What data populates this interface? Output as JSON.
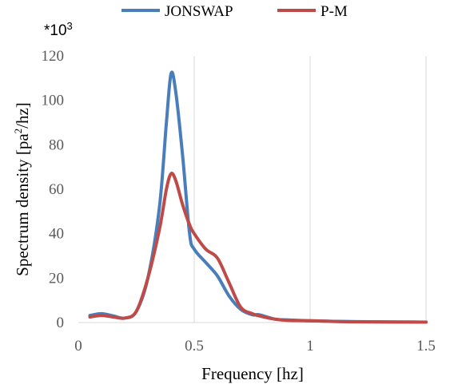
{
  "chart_data": {
    "type": "line",
    "xlabel": "Frequency [hz]",
    "ylabel_main": "Spectrum density [pa",
    "ylabel_sup": "2",
    "ylabel_tail": "/hz]",
    "multiplier_base": "*10",
    "multiplier_exp": "3",
    "xlim": [
      0,
      1.5
    ],
    "ylim": [
      0,
      120
    ],
    "x_ticks": [
      0,
      0.5,
      1,
      1.5
    ],
    "x_tick_labels": [
      "0",
      "0.5",
      "1",
      "1.5"
    ],
    "y_ticks": [
      0,
      20,
      40,
      60,
      80,
      100,
      120
    ],
    "y_tick_labels": [
      "0",
      "20",
      "40",
      "60",
      "80",
      "100",
      "120"
    ],
    "grid": "vertical",
    "legend_position": "top",
    "series": [
      {
        "name": "JONSWAP",
        "color": "#4a7ebb",
        "points": [
          [
            0.05,
            3.2
          ],
          [
            0.1,
            4.0
          ],
          [
            0.15,
            3.0
          ],
          [
            0.2,
            2.0
          ],
          [
            0.25,
            5.0
          ],
          [
            0.3,
            20.0
          ],
          [
            0.35,
            52.0
          ],
          [
            0.38,
            90.0
          ],
          [
            0.4,
            112.0
          ],
          [
            0.42,
            104.0
          ],
          [
            0.45,
            75.0
          ],
          [
            0.48,
            40.0
          ],
          [
            0.5,
            33.0
          ],
          [
            0.55,
            27.0
          ],
          [
            0.6,
            21.0
          ],
          [
            0.65,
            12.0
          ],
          [
            0.7,
            6.0
          ],
          [
            0.75,
            3.5
          ],
          [
            0.78,
            3.5
          ],
          [
            0.85,
            1.5
          ],
          [
            0.9,
            1.2
          ],
          [
            1.0,
            0.8
          ],
          [
            1.2,
            0.4
          ],
          [
            1.5,
            0.2
          ]
        ]
      },
      {
        "name": "P-M",
        "color": "#be4b48",
        "points": [
          [
            0.05,
            2.5
          ],
          [
            0.1,
            3.2
          ],
          [
            0.15,
            2.5
          ],
          [
            0.2,
            2.0
          ],
          [
            0.25,
            5.0
          ],
          [
            0.3,
            20.0
          ],
          [
            0.35,
            42.0
          ],
          [
            0.38,
            60.0
          ],
          [
            0.4,
            67.0
          ],
          [
            0.42,
            64.0
          ],
          [
            0.45,
            53.0
          ],
          [
            0.48,
            44.0
          ],
          [
            0.5,
            40.0
          ],
          [
            0.55,
            33.0
          ],
          [
            0.6,
            29.0
          ],
          [
            0.65,
            18.0
          ],
          [
            0.7,
            7.0
          ],
          [
            0.75,
            4.0
          ],
          [
            0.8,
            2.5
          ],
          [
            0.85,
            1.5
          ],
          [
            0.9,
            1.0
          ],
          [
            1.0,
            0.8
          ],
          [
            1.2,
            0.3
          ],
          [
            1.5,
            0.2
          ]
        ]
      }
    ]
  }
}
